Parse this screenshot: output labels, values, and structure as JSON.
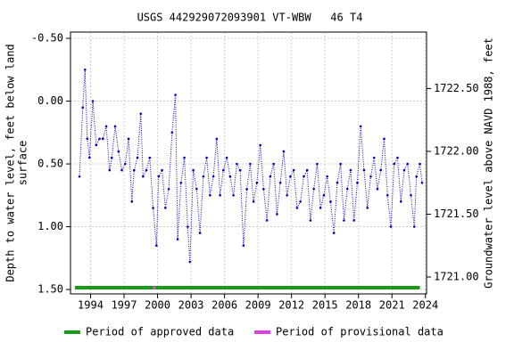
{
  "chart_data": {
    "type": "line",
    "title": "USGS 442929072093901 VT-WBW   46 T4",
    "ylabel": [
      "Depth to water level, feet below land",
      "surface"
    ],
    "y2label": "Groundwater level above NAVD 1988, feet",
    "x": [
      1993.0,
      1993.3,
      1993.5,
      1993.7,
      1993.9,
      1994.2,
      1994.5,
      1994.8,
      1995.1,
      1995.4,
      1995.7,
      1995.9,
      1996.2,
      1996.5,
      1996.8,
      1997.1,
      1997.4,
      1997.7,
      1997.9,
      1998.2,
      1998.5,
      1998.7,
      1999.0,
      1999.3,
      1999.6,
      1999.9,
      2000.1,
      2000.4,
      2000.7,
      2001.0,
      2001.3,
      2001.6,
      2001.8,
      2002.1,
      2002.4,
      2002.7,
      2002.9,
      2003.2,
      2003.5,
      2003.8,
      2004.1,
      2004.4,
      2004.7,
      2005.0,
      2005.3,
      2005.6,
      2005.9,
      2006.2,
      2006.5,
      2006.8,
      2007.1,
      2007.4,
      2007.7,
      2008.0,
      2008.3,
      2008.6,
      2008.9,
      2009.2,
      2009.5,
      2009.8,
      2010.1,
      2010.4,
      2010.7,
      2011.0,
      2011.3,
      2011.6,
      2011.9,
      2012.2,
      2012.5,
      2012.8,
      2013.1,
      2013.4,
      2013.7,
      2014.0,
      2014.3,
      2014.6,
      2014.9,
      2015.2,
      2015.5,
      2015.8,
      2016.1,
      2016.4,
      2016.7,
      2017.0,
      2017.3,
      2017.6,
      2017.9,
      2018.2,
      2018.5,
      2018.8,
      2019.1,
      2019.4,
      2019.7,
      2020.0,
      2020.3,
      2020.6,
      2020.9,
      2021.2,
      2021.5,
      2021.8,
      2022.1,
      2022.4,
      2022.7,
      2023.0,
      2023.2,
      2023.5,
      2023.7
    ],
    "series": [
      {
        "color": "#0000cc",
        "values": [
          0.6,
          0.05,
          -0.25,
          0.3,
          0.45,
          0.0,
          0.35,
          0.3,
          0.3,
          0.2,
          0.55,
          0.45,
          0.2,
          0.4,
          0.55,
          0.5,
          0.3,
          0.8,
          0.55,
          0.45,
          0.1,
          0.6,
          0.55,
          0.45,
          0.85,
          1.15,
          0.6,
          0.55,
          0.85,
          0.7,
          0.25,
          -0.05,
          1.1,
          0.65,
          0.45,
          1.0,
          1.28,
          0.55,
          0.7,
          1.05,
          0.6,
          0.45,
          0.75,
          0.6,
          0.3,
          0.75,
          0.55,
          0.45,
          0.6,
          0.75,
          0.5,
          0.55,
          1.15,
          0.7,
          0.5,
          0.8,
          0.65,
          0.35,
          0.7,
          0.95,
          0.6,
          0.5,
          0.9,
          0.65,
          0.4,
          0.75,
          0.6,
          0.55,
          0.85,
          0.8,
          0.6,
          0.55,
          0.95,
          0.7,
          0.5,
          0.85,
          0.75,
          0.6,
          0.8,
          1.05,
          0.65,
          0.5,
          0.95,
          0.7,
          0.55,
          0.95,
          0.65,
          0.2,
          0.55,
          0.85,
          0.6,
          0.45,
          0.7,
          0.55,
          0.3,
          0.75,
          1.0,
          0.5,
          0.45,
          0.8,
          0.55,
          0.5,
          0.75,
          1.0,
          0.6,
          0.5,
          0.65
        ]
      }
    ],
    "xlim": [
      1992.2,
      2024.1
    ],
    "xticks": [
      1994,
      1997,
      2000,
      2003,
      2006,
      2009,
      2012,
      2015,
      2018,
      2021,
      2024
    ],
    "ylim": [
      -0.55,
      1.535
    ],
    "yticks": [
      {
        "value": -0.5,
        "label": "-0.50"
      },
      {
        "value": 0,
        "label": "0.00"
      },
      {
        "value": 0.5,
        "label": "0.50"
      },
      {
        "value": 1,
        "label": "1.00"
      },
      {
        "value": 1.5,
        "label": "1.50"
      }
    ],
    "y2lim": [
      1722.95,
      1720.865
    ],
    "y2ticks": [
      {
        "value": 1722.5,
        "label": "1722.50"
      },
      {
        "value": 1722,
        "label": "1722.00"
      },
      {
        "value": 1721.5,
        "label": "1721.50"
      },
      {
        "value": 1721,
        "label": "1721.00"
      }
    ],
    "grid": true,
    "periods": [
      {
        "name": "Period of approved data",
        "color": "#1a9a1a",
        "ranges": [
          [
            1992.6,
            1999.6
          ],
          [
            1999.8,
            2023.5
          ]
        ]
      },
      {
        "name": "Period of provisional data",
        "color": "#e040e0",
        "ranges": [
          [
            1999.6,
            1999.8
          ]
        ]
      }
    ]
  }
}
